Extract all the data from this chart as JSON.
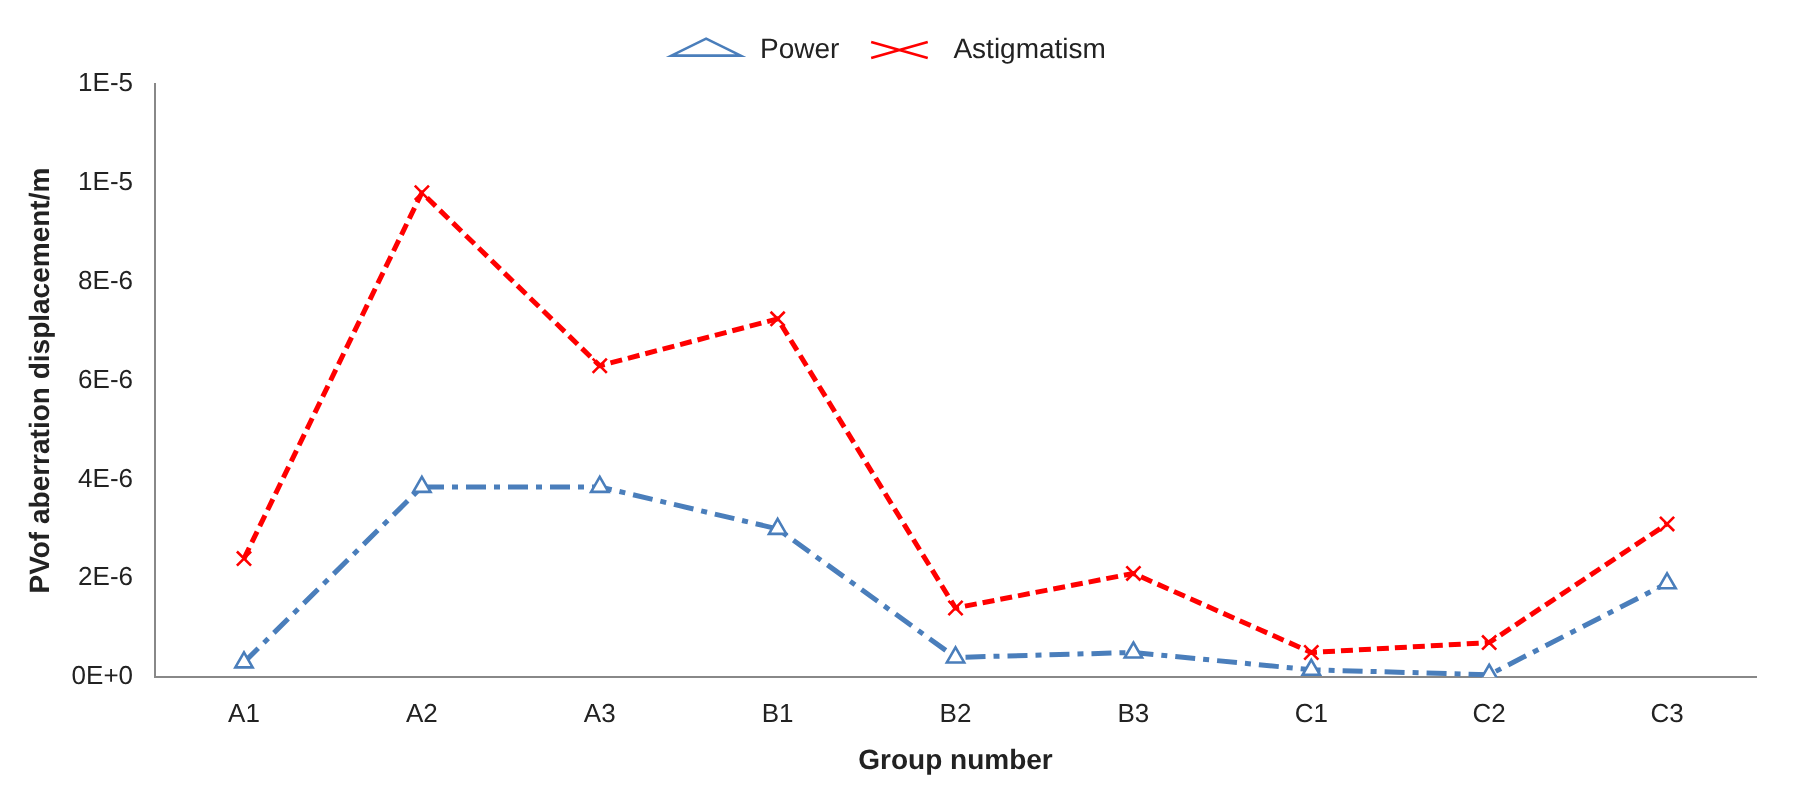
{
  "chart_data": {
    "type": "line",
    "xlabel": "Group number",
    "ylabel": "PVof aberration displacement/m",
    "categories": [
      "A1",
      "A2",
      "A3",
      "B1",
      "B2",
      "B3",
      "C1",
      "C2",
      "C3"
    ],
    "series": [
      {
        "name": "Power",
        "color": "#4a7ebb",
        "marker": "triangle",
        "line_style": "dashed",
        "values": [
          3e-07,
          3.85e-06,
          3.85e-06,
          3e-06,
          4e-07,
          5e-07,
          1.5e-07,
          5e-08,
          1.9e-06
        ]
      },
      {
        "name": "Astigmatism",
        "color": "#ff0000",
        "marker": "cross",
        "line_style": "dashed",
        "values": [
          2.4e-06,
          9.8e-06,
          6.3e-06,
          7.25e-06,
          1.4e-06,
          2.1e-06,
          5e-07,
          7e-07,
          3.1e-06
        ]
      }
    ],
    "ylim": [
      0,
      1.2e-05
    ],
    "yticks": [
      {
        "value": 0,
        "label": "0E+0"
      },
      {
        "value": 2e-06,
        "label": "2E-6"
      },
      {
        "value": 4e-06,
        "label": "4E-6"
      },
      {
        "value": 6e-06,
        "label": "6E-6"
      },
      {
        "value": 8e-06,
        "label": "8E-6"
      },
      {
        "value": 1e-05,
        "label": "1E-5"
      },
      {
        "value": 1.2e-05,
        "label": "1E-5"
      }
    ],
    "grid": false,
    "legend": "top"
  }
}
